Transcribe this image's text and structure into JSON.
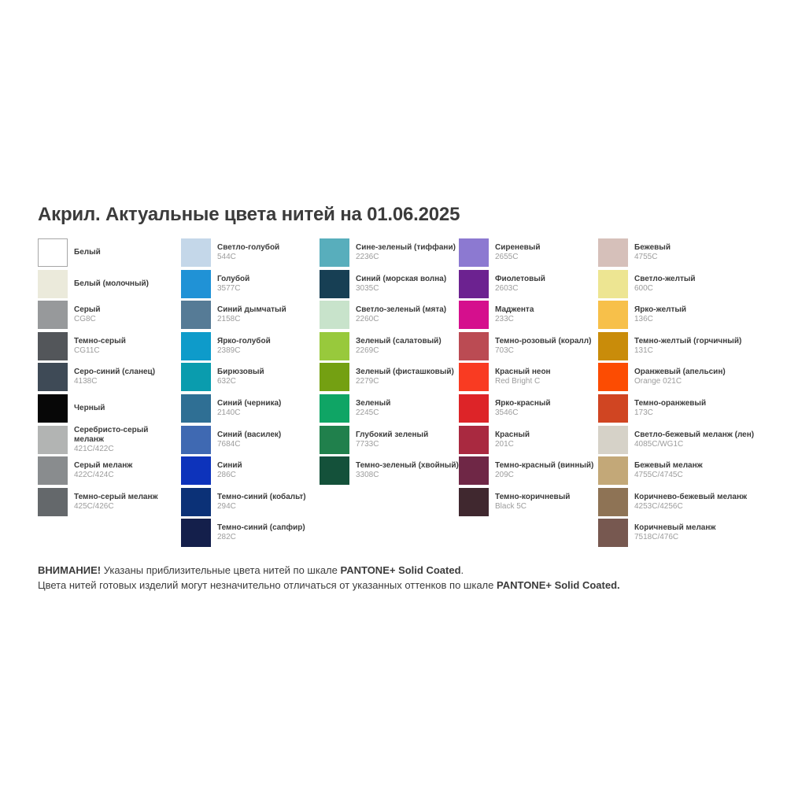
{
  "title": "Акрил. Актуальные цвета нитей на 01.06.2025",
  "columns": [
    {
      "items": [
        {
          "name": "Белый",
          "code": "",
          "hex": "#ffffff",
          "border": true
        },
        {
          "name": "Белый (молочный)",
          "code": "",
          "hex": "#ebeadb"
        },
        {
          "name": "Серый",
          "code": "CG8C",
          "hex": "#97999b"
        },
        {
          "name": "Темно-серый",
          "code": "CG11C",
          "hex": "#53565a"
        },
        {
          "name": "Серо-синий (сланец)",
          "code": "4138C",
          "hex": "#3e4a56"
        },
        {
          "name": "Черный",
          "code": "",
          "hex": "#070707"
        },
        {
          "name": "Серебристо-серый меланж",
          "code": "421C/422C",
          "hex": "#b2b4b3"
        },
        {
          "name": "Серый меланж",
          "code": "422C/424C",
          "hex": "#898c8e"
        },
        {
          "name": "Темно-серый меланж",
          "code": "425C/426C",
          "hex": "#64686b"
        }
      ]
    },
    {
      "items": [
        {
          "name": "Светло-голубой",
          "code": "544C",
          "hex": "#c4d7e9"
        },
        {
          "name": "Голубой",
          "code": "3577C",
          "hex": "#2092d6"
        },
        {
          "name": "Синий дымчатый",
          "code": "2158C",
          "hex": "#567b96"
        },
        {
          "name": "Ярко-голубой",
          "code": "2389C",
          "hex": "#0e9bca"
        },
        {
          "name": "Бирюзовый",
          "code": "632C",
          "hex": "#0a9cae"
        },
        {
          "name": "Синий (черника)",
          "code": "2140C",
          "hex": "#2f6f94"
        },
        {
          "name": "Синий (василек)",
          "code": "7684C",
          "hex": "#3f69b2"
        },
        {
          "name": "Синий",
          "code": "286C",
          "hex": "#0d33bb"
        },
        {
          "name": "Темно-синий (кобальт)",
          "code": "294C",
          "hex": "#0b3177"
        },
        {
          "name": "Темно-синий (сапфир)",
          "code": "282C",
          "hex": "#141f4b"
        }
      ]
    },
    {
      "items": [
        {
          "name": "Сине-зеленый (тиффани)",
          "code": "2236C",
          "hex": "#58aebc"
        },
        {
          "name": "Синий (морская волна)",
          "code": "3035C",
          "hex": "#173f54"
        },
        {
          "name": "Светло-зеленый (мята)",
          "code": "2260C",
          "hex": "#c8e3cb"
        },
        {
          "name": "Зеленый (салатовый)",
          "code": "2269C",
          "hex": "#98c93c"
        },
        {
          "name": "Зеленый (фисташковый)",
          "code": "2279C",
          "hex": "#74a012"
        },
        {
          "name": "Зеленый",
          "code": "2245C",
          "hex": "#0fa565"
        },
        {
          "name": "Глубокий зеленый",
          "code": "7733C",
          "hex": "#20804c"
        },
        {
          "name": "Темно-зеленый (хвойный)",
          "code": "3308C",
          "hex": "#14513a"
        }
      ]
    },
    {
      "items": [
        {
          "name": "Сиреневый",
          "code": "2655C",
          "hex": "#8c79d1"
        },
        {
          "name": "Фиолетовый",
          "code": "2603C",
          "hex": "#6c2290"
        },
        {
          "name": "Маджента",
          "code": "233C",
          "hex": "#d50f8d"
        },
        {
          "name": "Темно-розовый (коралл)",
          "code": "703C",
          "hex": "#bb4b53"
        },
        {
          "name": "Красный неон",
          "code": "Red Bright C",
          "hex": "#f93b22"
        },
        {
          "name": "Ярко-красный",
          "code": "3546C",
          "hex": "#dd2428"
        },
        {
          "name": "Красный",
          "code": "201C",
          "hex": "#a92940"
        },
        {
          "name": "Темно-красный (винный)",
          "code": "209C",
          "hex": "#6f2746"
        },
        {
          "name": "Темно-коричневый",
          "code": "Black 5C",
          "hex": "#40282f"
        }
      ]
    },
    {
      "items": [
        {
          "name": "Бежевый",
          "code": "4755C",
          "hex": "#d6c0ba"
        },
        {
          "name": "Светло-желтый",
          "code": "600C",
          "hex": "#ede592"
        },
        {
          "name": "Ярко-желтый",
          "code": "136C",
          "hex": "#f7c04a"
        },
        {
          "name": "Темно-желтый (горчичный)",
          "code": "131C",
          "hex": "#c98c0a"
        },
        {
          "name": "Оранжевый (апельсин)",
          "code": "Orange 021C",
          "hex": "#fc4c02"
        },
        {
          "name": "Темно-оранжевый",
          "code": "173C",
          "hex": "#d04522"
        },
        {
          "name": "Светло-бежевый меланж (лен)",
          "code": "4085C/WG1C",
          "hex": "#d6d2c8"
        },
        {
          "name": "Бежевый меланж",
          "code": "4755C/4745C",
          "hex": "#c3a878"
        },
        {
          "name": "Коричнево-бежевый меланж",
          "code": "4253C/4256C",
          "hex": "#8e7355"
        },
        {
          "name": "Коричневый меланж",
          "code": "7518C/476C",
          "hex": "#775850"
        }
      ]
    }
  ],
  "footer": {
    "warning": "ВНИМАНИЕ!",
    "line1_text": " Указаны приблизительные цвета нитей по шкале ",
    "line1_bold": "PANTONE+ Solid Coated",
    "line1_tail": ".",
    "line2_text": "Цвета нитей готовых изделий могут незначительно отличаться от указанных оттенков по шкале ",
    "line2_bold": "PANTONE+ Solid Coated."
  },
  "style_colors": {
    "swatch_border": "#a6a6a6",
    "name_text": "#3b3b3b",
    "code_text": "#9c9c9c"
  }
}
